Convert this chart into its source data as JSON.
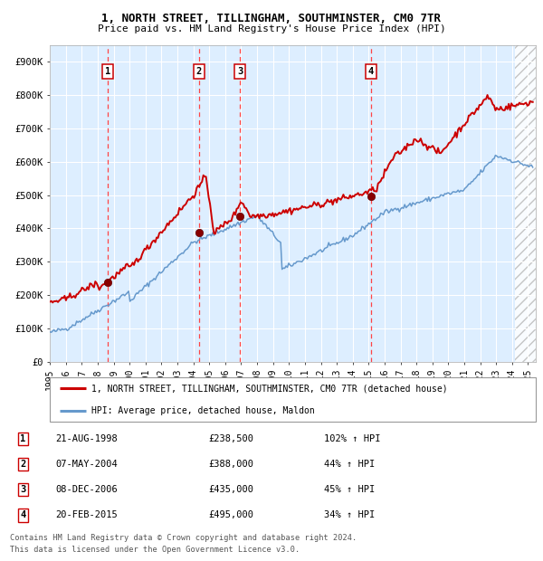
{
  "title1": "1, NORTH STREET, TILLINGHAM, SOUTHMINSTER, CM0 7TR",
  "title2": "Price paid vs. HM Land Registry's House Price Index (HPI)",
  "ylabel_ticks": [
    "£0",
    "£100K",
    "£200K",
    "£300K",
    "£400K",
    "£500K",
    "£600K",
    "£700K",
    "£800K",
    "£900K"
  ],
  "ytick_vals": [
    0,
    100000,
    200000,
    300000,
    400000,
    500000,
    600000,
    700000,
    800000,
    900000
  ],
  "ylim": [
    0,
    950000
  ],
  "xlim_start": 1995.0,
  "xlim_end": 2025.5,
  "transactions": [
    {
      "label": "1",
      "date": 1998.644,
      "price": 238500,
      "x_line": 1998.644
    },
    {
      "label": "2",
      "date": 2004.352,
      "price": 388000,
      "x_line": 2004.352
    },
    {
      "label": "3",
      "date": 2006.936,
      "price": 435000,
      "x_line": 2006.936
    },
    {
      "label": "4",
      "date": 2015.13,
      "price": 495000,
      "x_line": 2015.13
    }
  ],
  "legend_red": "1, NORTH STREET, TILLINGHAM, SOUTHMINSTER, CM0 7TR (detached house)",
  "legend_blue": "HPI: Average price, detached house, Maldon",
  "table_rows": [
    {
      "num": "1",
      "date": "21-AUG-1998",
      "price": "£238,500",
      "change": "102% ↑ HPI"
    },
    {
      "num": "2",
      "date": "07-MAY-2004",
      "price": "£388,000",
      "change": "44% ↑ HPI"
    },
    {
      "num": "3",
      "date": "08-DEC-2006",
      "price": "£435,000",
      "change": "45% ↑ HPI"
    },
    {
      "num": "4",
      "date": "20-FEB-2015",
      "price": "£495,000",
      "change": "34% ↑ HPI"
    }
  ],
  "footer1": "Contains HM Land Registry data © Crown copyright and database right 2024.",
  "footer2": "This data is licensed under the Open Government Licence v3.0.",
  "red_color": "#cc0000",
  "blue_color": "#6699cc",
  "bg_color": "#ddeeff",
  "grid_color": "#ffffff",
  "dashed_color": "#ff4444"
}
